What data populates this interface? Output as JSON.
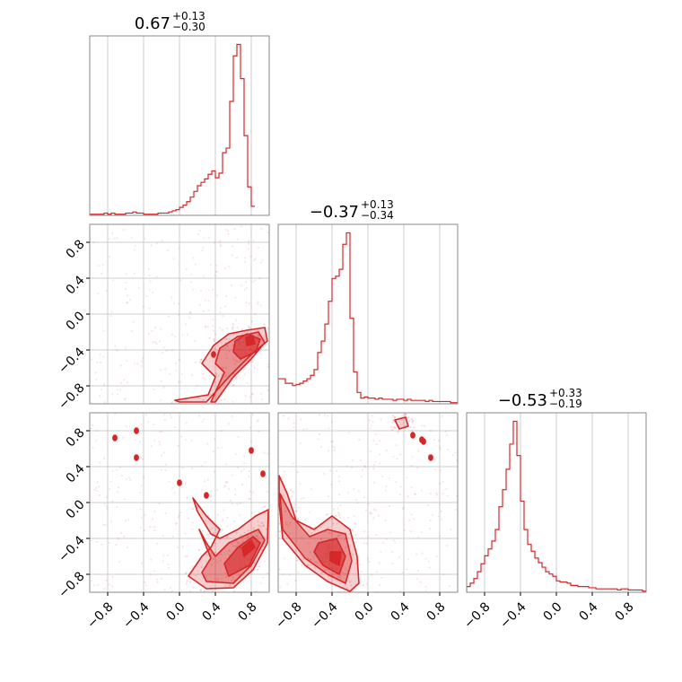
{
  "chart_data": {
    "type": "corner",
    "color": "#d62728",
    "grid": true,
    "axis_range": [
      -1.0,
      1.0
    ],
    "ticks": [
      -0.8,
      -0.4,
      0.0,
      0.4,
      0.8
    ],
    "tick_labels": [
      "−0.8",
      "−0.4",
      "0.0",
      "0.4",
      "0.8"
    ],
    "titles": [
      {
        "value": "0.67",
        "plus": "+0.13",
        "minus": "−0.30"
      },
      {
        "value": "−0.37",
        "plus": "+0.13",
        "minus": "−0.34"
      },
      {
        "value": "−0.53",
        "plus": "+0.33",
        "minus": "−0.19"
      }
    ],
    "histograms": [
      {
        "param": 0,
        "bin_start": -1.0,
        "bin_width": 0.04,
        "counts": [
          1,
          1,
          1,
          1,
          2,
          1,
          2,
          1,
          1,
          1,
          2,
          2,
          3,
          2,
          2,
          1,
          1,
          1,
          1,
          2,
          2,
          2,
          3,
          4,
          5,
          7,
          9,
          12,
          16,
          21,
          26,
          29,
          32,
          36,
          39,
          33,
          37,
          55,
          59,
          100,
          140,
          150,
          120,
          70,
          25,
          8
        ]
      },
      {
        "param": 1,
        "bin_start": -1.0,
        "bin_width": 0.04,
        "counts": [
          22,
          22,
          18,
          18,
          16,
          17,
          18,
          20,
          22,
          25,
          30,
          45,
          55,
          70,
          90,
          110,
          112,
          118,
          140,
          150,
          75,
          28,
          10,
          5,
          6,
          5,
          5,
          4,
          5,
          4,
          4,
          4,
          3,
          4,
          4,
          3,
          4,
          3,
          3,
          3,
          3,
          2,
          3,
          2,
          2,
          2,
          2,
          2,
          1,
          1
        ]
      },
      {
        "param": 2,
        "bin_start": -1.0,
        "bin_width": 0.04,
        "counts": [
          5,
          8,
          12,
          18,
          25,
          32,
          38,
          45,
          55,
          75,
          90,
          108,
          130,
          150,
          120,
          80,
          55,
          42,
          36,
          30,
          26,
          22,
          18,
          16,
          14,
          10,
          9,
          9,
          8,
          6,
          6,
          5,
          5,
          5,
          4,
          4,
          3,
          3,
          3,
          3,
          3,
          3,
          2,
          3,
          3,
          2,
          2,
          2,
          2,
          1
        ]
      }
    ],
    "density_regions": [
      {
        "row": 1,
        "col": 0,
        "level": 1,
        "points": [
          [
            0.0,
            -0.98
          ],
          [
            0.3,
            -0.98
          ],
          [
            0.55,
            -0.7
          ],
          [
            0.8,
            -0.45
          ],
          [
            0.98,
            -0.3
          ],
          [
            0.95,
            -0.15
          ],
          [
            0.75,
            -0.18
          ],
          [
            0.55,
            -0.22
          ],
          [
            0.38,
            -0.35
          ],
          [
            0.25,
            -0.55
          ],
          [
            0.4,
            -0.7
          ],
          [
            0.32,
            -0.9
          ],
          [
            -0.05,
            -0.96
          ]
        ]
      },
      {
        "row": 1,
        "col": 0,
        "level": 2,
        "points": [
          [
            0.4,
            -0.98
          ],
          [
            0.6,
            -0.7
          ],
          [
            0.8,
            -0.5
          ],
          [
            0.95,
            -0.32
          ],
          [
            0.88,
            -0.2
          ],
          [
            0.65,
            -0.25
          ],
          [
            0.45,
            -0.38
          ],
          [
            0.4,
            -0.55
          ],
          [
            0.5,
            -0.65
          ],
          [
            0.35,
            -0.98
          ]
        ]
      },
      {
        "row": 1,
        "col": 0,
        "level": 3,
        "points": [
          [
            0.68,
            -0.5
          ],
          [
            0.85,
            -0.42
          ],
          [
            0.9,
            -0.28
          ],
          [
            0.75,
            -0.22
          ],
          [
            0.62,
            -0.3
          ],
          [
            0.6,
            -0.42
          ]
        ]
      },
      {
        "row": 1,
        "col": 0,
        "level": 4,
        "points": [
          [
            0.75,
            -0.35
          ],
          [
            0.84,
            -0.33
          ],
          [
            0.82,
            -0.24
          ],
          [
            0.74,
            -0.26
          ]
        ]
      },
      {
        "row": 2,
        "col": 0,
        "level": 1,
        "points": [
          [
            0.1,
            -0.82
          ],
          [
            0.3,
            -0.96
          ],
          [
            0.6,
            -0.95
          ],
          [
            0.82,
            -0.75
          ],
          [
            0.98,
            -0.45
          ],
          [
            0.99,
            -0.08
          ],
          [
            0.85,
            -0.15
          ],
          [
            0.65,
            -0.3
          ],
          [
            0.45,
            -0.4
          ],
          [
            0.35,
            -0.35
          ],
          [
            0.2,
            -0.1
          ],
          [
            0.15,
            0.05
          ],
          [
            0.3,
            -0.15
          ],
          [
            0.45,
            -0.3
          ],
          [
            0.35,
            -0.5
          ],
          [
            0.25,
            -0.6
          ]
        ]
      },
      {
        "row": 2,
        "col": 0,
        "level": 2,
        "points": [
          [
            0.3,
            -0.88
          ],
          [
            0.6,
            -0.9
          ],
          [
            0.8,
            -0.7
          ],
          [
            0.95,
            -0.42
          ],
          [
            0.88,
            -0.3
          ],
          [
            0.7,
            -0.38
          ],
          [
            0.55,
            -0.45
          ],
          [
            0.4,
            -0.6
          ],
          [
            0.3,
            -0.45
          ],
          [
            0.22,
            -0.3
          ],
          [
            0.35,
            -0.62
          ],
          [
            0.25,
            -0.78
          ]
        ]
      },
      {
        "row": 2,
        "col": 0,
        "level": 3,
        "points": [
          [
            0.55,
            -0.82
          ],
          [
            0.78,
            -0.7
          ],
          [
            0.9,
            -0.45
          ],
          [
            0.82,
            -0.38
          ],
          [
            0.65,
            -0.5
          ],
          [
            0.5,
            -0.68
          ]
        ]
      },
      {
        "row": 2,
        "col": 0,
        "level": 4,
        "points": [
          [
            0.72,
            -0.6
          ],
          [
            0.84,
            -0.5
          ],
          [
            0.8,
            -0.42
          ],
          [
            0.7,
            -0.5
          ]
        ]
      },
      {
        "row": 2,
        "col": 1,
        "level": 1,
        "points": [
          [
            -0.99,
            0.3
          ],
          [
            -0.9,
            0.1
          ],
          [
            -0.8,
            -0.2
          ],
          [
            -0.6,
            -0.3
          ],
          [
            -0.4,
            -0.15
          ],
          [
            -0.2,
            -0.3
          ],
          [
            -0.12,
            -0.6
          ],
          [
            -0.1,
            -0.9
          ],
          [
            -0.2,
            -0.99
          ],
          [
            -0.45,
            -0.88
          ],
          [
            -0.7,
            -0.7
          ],
          [
            -0.95,
            -0.4
          ],
          [
            -0.99,
            0.0
          ]
        ]
      },
      {
        "row": 2,
        "col": 1,
        "level": 2,
        "points": [
          [
            -0.98,
            0.1
          ],
          [
            -0.85,
            -0.15
          ],
          [
            -0.65,
            -0.38
          ],
          [
            -0.45,
            -0.3
          ],
          [
            -0.25,
            -0.35
          ],
          [
            -0.18,
            -0.65
          ],
          [
            -0.25,
            -0.9
          ],
          [
            -0.45,
            -0.8
          ],
          [
            -0.7,
            -0.62
          ],
          [
            -0.95,
            -0.3
          ]
        ]
      },
      {
        "row": 2,
        "col": 1,
        "level": 3,
        "points": [
          [
            -0.55,
            -0.45
          ],
          [
            -0.35,
            -0.4
          ],
          [
            -0.25,
            -0.6
          ],
          [
            -0.32,
            -0.8
          ],
          [
            -0.5,
            -0.7
          ],
          [
            -0.6,
            -0.55
          ]
        ]
      },
      {
        "row": 2,
        "col": 1,
        "level": 4,
        "points": [
          [
            -0.42,
            -0.55
          ],
          [
            -0.3,
            -0.55
          ],
          [
            -0.32,
            -0.7
          ],
          [
            -0.42,
            -0.65
          ]
        ]
      },
      {
        "row": 2,
        "col": 1,
        "level": 1,
        "points": [
          [
            0.3,
            0.92
          ],
          [
            0.42,
            0.95
          ],
          [
            0.45,
            0.85
          ],
          [
            0.35,
            0.82
          ]
        ]
      }
    ],
    "islands": [
      {
        "row": 2,
        "col": 0,
        "x": -0.72,
        "y": 0.72
      },
      {
        "row": 2,
        "col": 0,
        "x": -0.48,
        "y": 0.8
      },
      {
        "row": 2,
        "col": 0,
        "x": -0.48,
        "y": 0.5
      },
      {
        "row": 2,
        "col": 0,
        "x": 0.0,
        "y": 0.22
      },
      {
        "row": 2,
        "col": 0,
        "x": 0.3,
        "y": 0.08
      },
      {
        "row": 2,
        "col": 0,
        "x": 0.8,
        "y": 0.58
      },
      {
        "row": 2,
        "col": 0,
        "x": 0.93,
        "y": 0.32
      },
      {
        "row": 2,
        "col": 1,
        "x": 0.5,
        "y": 0.75
      },
      {
        "row": 2,
        "col": 1,
        "x": 0.6,
        "y": 0.7
      },
      {
        "row": 2,
        "col": 1,
        "x": 0.62,
        "y": 0.68
      },
      {
        "row": 2,
        "col": 1,
        "x": 0.7,
        "y": 0.5
      },
      {
        "row": 1,
        "col": 0,
        "x": 0.38,
        "y": -0.45
      }
    ]
  }
}
